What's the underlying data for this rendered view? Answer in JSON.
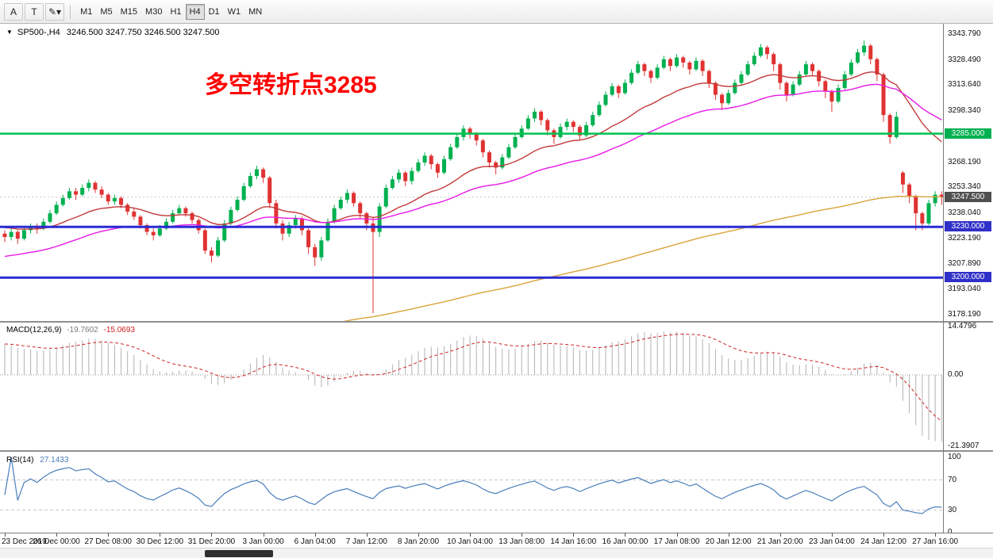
{
  "toolbar": {
    "tools": [
      {
        "label": "A",
        "name": "arrow-tool-button"
      },
      {
        "label": "T",
        "name": "text-tool-button"
      },
      {
        "label": "✎▾",
        "name": "draw-tools-dropdown"
      }
    ],
    "timeframes": [
      {
        "label": "M1",
        "active": false
      },
      {
        "label": "M5",
        "active": false
      },
      {
        "label": "M15",
        "active": false
      },
      {
        "label": "M30",
        "active": false
      },
      {
        "label": "H1",
        "active": false
      },
      {
        "label": "H4",
        "active": true
      },
      {
        "label": "D1",
        "active": false
      },
      {
        "label": "W1",
        "active": false
      },
      {
        "label": "MN",
        "active": false
      }
    ]
  },
  "chart": {
    "symbol_label": "SP500-,H4",
    "ohlc_label": "3246.500 3247.750 3246.500 3247.500",
    "annotation": {
      "text": "多空转折点3285",
      "color": "#ff0000"
    },
    "current_price": 3247.5,
    "colors": {
      "bull": "#00b050",
      "bear": "#e03232"
    },
    "price_axis": {
      "min": 3174.4,
      "max": 3349.9,
      "labels": [
        3343.79,
        3328.49,
        3313.64,
        3298.34,
        3268.19,
        3253.34,
        3238.04,
        3223.19,
        3207.89,
        3193.04,
        3178.19
      ],
      "badges": [
        {
          "price": 3285.0,
          "text": "3285.000",
          "color": "#00b050",
          "name": "resistance-line-badge"
        },
        {
          "price": 3247.5,
          "text": "3247.500",
          "color": "#4f4f4f",
          "name": "current-price-badge"
        },
        {
          "price": 3230.0,
          "text": "3230.000",
          "color": "#3030c8",
          "name": "support-line-badge-3230"
        },
        {
          "price": 3200.0,
          "text": "3200.000",
          "color": "#3030c8",
          "name": "support-line-badge-3200"
        }
      ]
    },
    "hlines": [
      {
        "price": 3285.0,
        "color": "#00c24e",
        "width": 2.5
      },
      {
        "price": 3230.0,
        "color": "#2b2bd5",
        "width": 3
      },
      {
        "price": 3200.0,
        "color": "#2b2bd5",
        "width": 3
      }
    ],
    "mas": [
      {
        "period": 21,
        "color": "#c23b3b",
        "seed": 3230
      },
      {
        "period": 44,
        "color": "#e619e6",
        "seed": 3212
      },
      {
        "period": 200,
        "color": "#d9a43a",
        "seed": 3130
      }
    ],
    "candles": [
      [
        3226,
        3228,
        3221,
        3224
      ],
      [
        3224,
        3229,
        3222,
        3227
      ],
      [
        3227,
        3228,
        3220,
        3223
      ],
      [
        3223,
        3230,
        3222,
        3228
      ],
      [
        3228,
        3232,
        3226,
        3230
      ],
      [
        3230,
        3232,
        3226,
        3229
      ],
      [
        3229,
        3235,
        3228,
        3233
      ],
      [
        3233,
        3240,
        3232,
        3238
      ],
      [
        3238,
        3245,
        3237,
        3243
      ],
      [
        3243,
        3249,
        3242,
        3247
      ],
      [
        3247,
        3253,
        3246,
        3251
      ],
      [
        3251,
        3253,
        3246,
        3249
      ],
      [
        3249,
        3255,
        3248,
        3253
      ],
      [
        3253,
        3258,
        3251,
        3256
      ],
      [
        3256,
        3257,
        3250,
        3252
      ],
      [
        3252,
        3254,
        3247,
        3249
      ],
      [
        3249,
        3250,
        3243,
        3245
      ],
      [
        3245,
        3249,
        3243,
        3247
      ],
      [
        3247,
        3248,
        3241,
        3243
      ],
      [
        3243,
        3244,
        3237,
        3239
      ],
      [
        3239,
        3241,
        3234,
        3236
      ],
      [
        3236,
        3237,
        3229,
        3231
      ],
      [
        3231,
        3232,
        3225,
        3227
      ],
      [
        3227,
        3229,
        3222,
        3225
      ],
      [
        3225,
        3231,
        3224,
        3229
      ],
      [
        3229,
        3235,
        3228,
        3233
      ],
      [
        3233,
        3240,
        3232,
        3238
      ],
      [
        3238,
        3243,
        3237,
        3241
      ],
      [
        3241,
        3242,
        3236,
        3238
      ],
      [
        3238,
        3239,
        3232,
        3234
      ],
      [
        3234,
        3235,
        3226,
        3228
      ],
      [
        3228,
        3229,
        3214,
        3216
      ],
      [
        3216,
        3218,
        3209,
        3213
      ],
      [
        3213,
        3224,
        3212,
        3222
      ],
      [
        3222,
        3234,
        3221,
        3232
      ],
      [
        3232,
        3242,
        3231,
        3240
      ],
      [
        3240,
        3248,
        3239,
        3246
      ],
      [
        3246,
        3256,
        3245,
        3254
      ],
      [
        3254,
        3262,
        3253,
        3260
      ],
      [
        3260,
        3266,
        3258,
        3264
      ],
      [
        3264,
        3265,
        3256,
        3259
      ],
      [
        3259,
        3260,
        3241,
        3244
      ],
      [
        3244,
        3246,
        3229,
        3232
      ],
      [
        3232,
        3234,
        3222,
        3226
      ],
      [
        3226,
        3233,
        3224,
        3231
      ],
      [
        3231,
        3237,
        3229,
        3235
      ],
      [
        3235,
        3236,
        3225,
        3228
      ],
      [
        3228,
        3229,
        3214,
        3218
      ],
      [
        3218,
        3220,
        3207,
        3212
      ],
      [
        3212,
        3224,
        3210,
        3222
      ],
      [
        3222,
        3235,
        3221,
        3233
      ],
      [
        3233,
        3243,
        3232,
        3241
      ],
      [
        3241,
        3248,
        3240,
        3246
      ],
      [
        3246,
        3252,
        3244,
        3250
      ],
      [
        3250,
        3251,
        3242,
        3244
      ],
      [
        3244,
        3245,
        3235,
        3238
      ],
      [
        3238,
        3239,
        3228,
        3232
      ],
      [
        3232,
        3236,
        3179,
        3227
      ],
      [
        3227,
        3244,
        3224,
        3242
      ],
      [
        3242,
        3255,
        3241,
        3253
      ],
      [
        3253,
        3260,
        3252,
        3258
      ],
      [
        3258,
        3264,
        3256,
        3262
      ],
      [
        3262,
        3263,
        3254,
        3257
      ],
      [
        3257,
        3265,
        3255,
        3263
      ],
      [
        3263,
        3270,
        3262,
        3268
      ],
      [
        3268,
        3274,
        3266,
        3272
      ],
      [
        3272,
        3273,
        3264,
        3267
      ],
      [
        3267,
        3268,
        3259,
        3262
      ],
      [
        3262,
        3272,
        3261,
        3270
      ],
      [
        3270,
        3279,
        3269,
        3277
      ],
      [
        3277,
        3285,
        3276,
        3283
      ],
      [
        3283,
        3290,
        3281,
        3288
      ],
      [
        3288,
        3289,
        3282,
        3285
      ],
      [
        3285,
        3286,
        3278,
        3281
      ],
      [
        3281,
        3282,
        3271,
        3274
      ],
      [
        3274,
        3275,
        3265,
        3268
      ],
      [
        3268,
        3269,
        3261,
        3265
      ],
      [
        3265,
        3273,
        3264,
        3271
      ],
      [
        3271,
        3279,
        3270,
        3277
      ],
      [
        3277,
        3285,
        3276,
        3283
      ],
      [
        3283,
        3290,
        3282,
        3288
      ],
      [
        3288,
        3296,
        3287,
        3294
      ],
      [
        3294,
        3300,
        3292,
        3298
      ],
      [
        3298,
        3299,
        3290,
        3293
      ],
      [
        3293,
        3294,
        3284,
        3287
      ],
      [
        3287,
        3288,
        3279,
        3283
      ],
      [
        3283,
        3291,
        3282,
        3289
      ],
      [
        3289,
        3294,
        3287,
        3292
      ],
      [
        3292,
        3293,
        3286,
        3289
      ],
      [
        3289,
        3290,
        3281,
        3284
      ],
      [
        3284,
        3292,
        3283,
        3290
      ],
      [
        3290,
        3298,
        3289,
        3296
      ],
      [
        3296,
        3304,
        3295,
        3302
      ],
      [
        3302,
        3310,
        3301,
        3308
      ],
      [
        3308,
        3315,
        3307,
        3313
      ],
      [
        3313,
        3314,
        3306,
        3309
      ],
      [
        3309,
        3317,
        3308,
        3315
      ],
      [
        3315,
        3323,
        3314,
        3321
      ],
      [
        3321,
        3328,
        3320,
        3326
      ],
      [
        3326,
        3327,
        3319,
        3322
      ],
      [
        3322,
        3323,
        3315,
        3318
      ],
      [
        3318,
        3326,
        3317,
        3324
      ],
      [
        3324,
        3331,
        3323,
        3329
      ],
      [
        3329,
        3330,
        3322,
        3325
      ],
      [
        3325,
        3332,
        3324,
        3330
      ],
      [
        3330,
        3331,
        3324,
        3327
      ],
      [
        3327,
        3328,
        3320,
        3323
      ],
      [
        3323,
        3330,
        3322,
        3328
      ],
      [
        3328,
        3329,
        3319,
        3322
      ],
      [
        3322,
        3323,
        3312,
        3315
      ],
      [
        3315,
        3316,
        3305,
        3308
      ],
      [
        3308,
        3309,
        3299,
        3303
      ],
      [
        3303,
        3311,
        3302,
        3309
      ],
      [
        3309,
        3317,
        3308,
        3315
      ],
      [
        3315,
        3322,
        3314,
        3320
      ],
      [
        3320,
        3328,
        3319,
        3326
      ],
      [
        3326,
        3333,
        3325,
        3331
      ],
      [
        3331,
        3338,
        3330,
        3336
      ],
      [
        3336,
        3337,
        3329,
        3332
      ],
      [
        3332,
        3333,
        3322,
        3326
      ],
      [
        3326,
        3327,
        3311,
        3315
      ],
      [
        3315,
        3316,
        3304,
        3308
      ],
      [
        3308,
        3316,
        3307,
        3314
      ],
      [
        3314,
        3322,
        3313,
        3320
      ],
      [
        3320,
        3328,
        3319,
        3326
      ],
      [
        3326,
        3327,
        3319,
        3322
      ],
      [
        3322,
        3323,
        3313,
        3316
      ],
      [
        3316,
        3317,
        3306,
        3310
      ],
      [
        3310,
        3311,
        3298,
        3304
      ],
      [
        3304,
        3314,
        3303,
        3312
      ],
      [
        3312,
        3322,
        3311,
        3320
      ],
      [
        3320,
        3329,
        3319,
        3327
      ],
      [
        3327,
        3335,
        3326,
        3333
      ],
      [
        3333,
        3340,
        3331,
        3337
      ],
      [
        3337,
        3338,
        3326,
        3329
      ],
      [
        3329,
        3330,
        3316,
        3320
      ],
      [
        3320,
        3321,
        3292,
        3296
      ],
      [
        3296,
        3297,
        3279,
        3283
      ],
      [
        3283,
        3298,
        3282,
        3295
      ],
      [
        3262,
        3263,
        3250,
        3255
      ],
      [
        3255,
        3256,
        3244,
        3248
      ],
      [
        3248,
        3249,
        3228,
        3238
      ],
      [
        3238,
        3239,
        3228,
        3232
      ],
      [
        3232,
        3246,
        3231,
        3244
      ],
      [
        3244,
        3251,
        3242,
        3249
      ],
      [
        3249,
        3251,
        3243,
        3247.5
      ]
    ]
  },
  "macd": {
    "label": "MACD(12,26,9)",
    "value_main": "-19.7602",
    "value_signal": "-15.0693",
    "params": {
      "fast": 12,
      "slow": 26,
      "signal": 9
    },
    "scale": {
      "max": 14.4796,
      "min": -21.3907,
      "labels": [
        {
          "v": 14.4796,
          "text": "14.4796"
        },
        {
          "v": 0,
          "text": "0.00"
        },
        {
          "v": -21.3907,
          "text": "-21.3907"
        }
      ]
    },
    "colors": {
      "hist": "#b2b2b2",
      "signal": "#cc2222"
    }
  },
  "rsi": {
    "label": "RSI(14)",
    "value": "27.1433",
    "period": 14,
    "color": "#4a7ebb",
    "levels": [
      70,
      30
    ],
    "scale_labels": [
      {
        "v": 100,
        "text": "100"
      },
      {
        "v": 70,
        "text": "70"
      },
      {
        "v": 30,
        "text": "30"
      },
      {
        "v": 0,
        "text": "0"
      }
    ]
  },
  "time_axis": {
    "labels": [
      {
        "text": "23 Dec 2019",
        "bar": 0
      },
      {
        "text": "26 Dec 00:00",
        "bar": 8
      },
      {
        "text": "27 Dec 08:00",
        "bar": 16
      },
      {
        "text": "30 Dec 12:00",
        "bar": 24
      },
      {
        "text": "31 Dec 20:00",
        "bar": 32
      },
      {
        "text": "3 Jan 00:00",
        "bar": 40
      },
      {
        "text": "6 Jan 04:00",
        "bar": 48
      },
      {
        "text": "7 Jan 12:00",
        "bar": 56
      },
      {
        "text": "8 Jan 20:00",
        "bar": 64
      },
      {
        "text": "10 Jan 04:00",
        "bar": 72
      },
      {
        "text": "13 Jan 08:00",
        "bar": 80
      },
      {
        "text": "14 Jan 16:00",
        "bar": 88
      },
      {
        "text": "16 Jan 00:00",
        "bar": 96
      },
      {
        "text": "17 Jan 08:00",
        "bar": 104
      },
      {
        "text": "20 Jan 12:00",
        "bar": 112
      },
      {
        "text": "21 Jan 20:00",
        "bar": 120
      },
      {
        "text": "23 Jan 04:00",
        "bar": 128
      },
      {
        "text": "24 Jan 12:00",
        "bar": 136
      },
      {
        "text": "27 Jan 16:00",
        "bar": 144
      }
    ]
  }
}
